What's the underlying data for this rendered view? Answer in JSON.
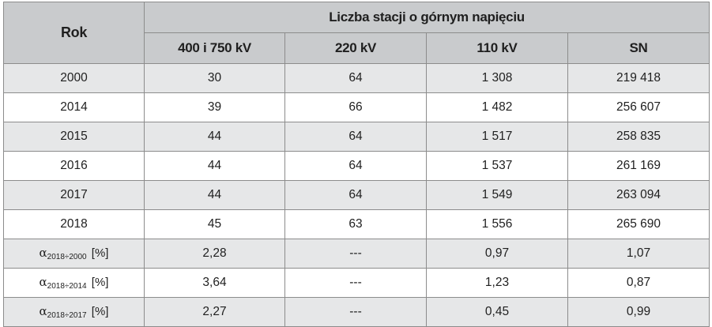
{
  "table": {
    "headers": {
      "year": "Rok",
      "group": "Liczba stacji o górnym napięciu",
      "columns": [
        "400 i 750 kV",
        "220 kV",
        "110 kV",
        "SN"
      ]
    },
    "rows": [
      {
        "year": "2000",
        "values": [
          "30",
          "64",
          "1 308",
          "219 418"
        ]
      },
      {
        "year": "2014",
        "values": [
          "39",
          "66",
          "1 482",
          "256 607"
        ]
      },
      {
        "year": "2015",
        "values": [
          "44",
          "64",
          "1 517",
          "258 835"
        ]
      },
      {
        "year": "2016",
        "values": [
          "44",
          "64",
          "1 537",
          "261 169"
        ]
      },
      {
        "year": "2017",
        "values": [
          "44",
          "64",
          "1 549",
          "263 094"
        ]
      },
      {
        "year": "2018",
        "values": [
          "45",
          "63",
          "1 556",
          "265 690"
        ]
      }
    ],
    "alpha_rows": [
      {
        "symbol": "α",
        "sub": "2018÷2000",
        "unit": "[%]",
        "values": [
          "2,28",
          "---",
          "0,97",
          "1,07"
        ]
      },
      {
        "symbol": "α",
        "sub": "2018÷2014",
        "unit": "[%]",
        "values": [
          "3,64",
          "---",
          "1,23",
          "0,87"
        ]
      },
      {
        "symbol": "α",
        "sub": "2018÷2017",
        "unit": "[%]",
        "values": [
          "2,27",
          "---",
          "0,45",
          "0,99"
        ]
      }
    ]
  }
}
